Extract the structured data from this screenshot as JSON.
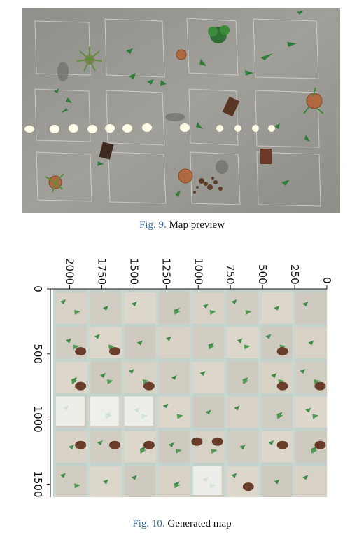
{
  "figures": [
    {
      "number": "Fig. 9.",
      "caption": "Map preview",
      "image": "photo-overhead-floor-with-scattered-plants"
    },
    {
      "number": "Fig. 10.",
      "caption": "Generated map",
      "image": "stitched-grid-of-camera-tiles"
    }
  ],
  "chart_data": {
    "type": "heatmap",
    "x_ticks": [
      "2000",
      "1750",
      "1500",
      "1250",
      "1000",
      "750",
      "500",
      "250",
      "0"
    ],
    "y_ticks": [
      "0",
      "500",
      "1000",
      "1500"
    ],
    "xlim": [
      2150,
      0
    ],
    "ylim": [
      0,
      1600
    ],
    "grid_columns": 8,
    "grid_rows": 6
  }
}
